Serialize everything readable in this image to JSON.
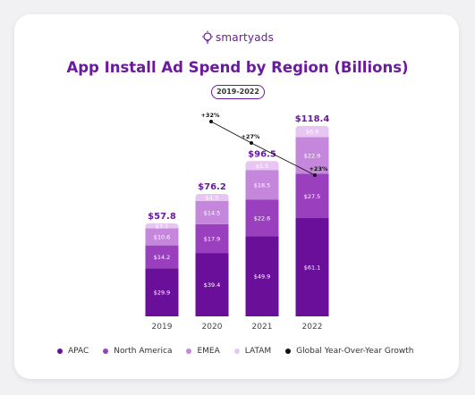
{
  "brand": {
    "name": "smartyads"
  },
  "chart_data": {
    "type": "bar",
    "stacked": true,
    "title": "App Install Ad Spend by Region (Billions)",
    "subtitle": "2019-2022",
    "categories": [
      "2019",
      "2020",
      "2021",
      "2022"
    ],
    "series": [
      {
        "name": "APAC",
        "color": "#6a0f99",
        "values": [
          29.9,
          39.4,
          49.9,
          61.1
        ]
      },
      {
        "name": "North America",
        "color": "#9a3fbd",
        "values": [
          14.2,
          17.9,
          22.6,
          27.5
        ]
      },
      {
        "name": "EMEA",
        "color": "#c487dc",
        "values": [
          10.6,
          14.5,
          18.5,
          22.9
        ]
      },
      {
        "name": "LATAM",
        "color": "#e7c6f2",
        "values": [
          3.1,
          4.3,
          5.5,
          6.9
        ]
      }
    ],
    "segment_labels": [
      [
        "$29.9",
        "$39.4",
        "$49.9",
        "$61.1"
      ],
      [
        "$14.2",
        "$17.9",
        "$22.6",
        "$27.5"
      ],
      [
        "$10.6",
        "$14.5",
        "$18.5",
        "$22.9"
      ],
      [
        "$3.1",
        "$4.3",
        "$5.5",
        "$6.9"
      ]
    ],
    "totals": [
      57.8,
      76.2,
      96.5,
      118.4
    ],
    "total_labels": [
      "$57.8",
      "$76.2",
      "$96.5",
      "$118.4"
    ],
    "growth": {
      "name": "Global Year-Over-Year Growth",
      "color": "#111111",
      "values": [
        32,
        27,
        23
      ],
      "labels": [
        "+32%",
        "+27%",
        "+23%"
      ]
    },
    "ylim": [
      0,
      130
    ],
    "grid": false,
    "legend_position": "bottom"
  }
}
